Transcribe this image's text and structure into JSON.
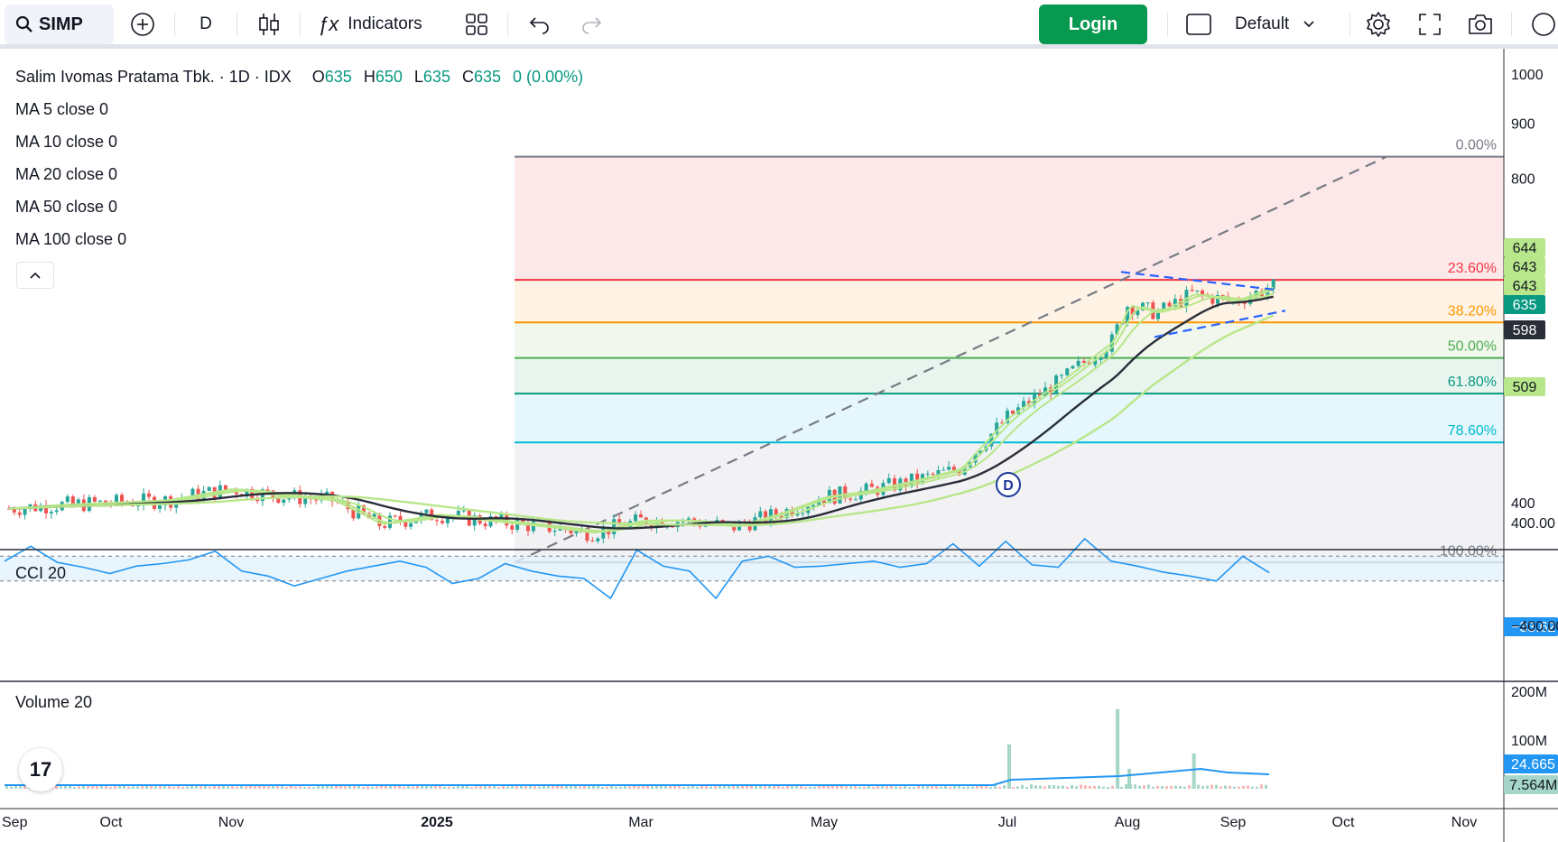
{
  "toolbar": {
    "symbol": "SIMP",
    "interval": "D",
    "indicators_label": "Indicators",
    "login_label": "Login",
    "layout_label": "Default"
  },
  "legend": {
    "name": "Salim Ivomas Pratama Tbk. · 1D · IDX",
    "o_label": "O",
    "o": "635",
    "h_label": "H",
    "h": "650",
    "l_label": "L",
    "l": "635",
    "c_label": "C",
    "c": "635",
    "change": "0 (0.00%)",
    "ma": [
      "MA 5 close 0",
      "MA 10 close 0",
      "MA 20 close 0",
      "MA 50 close 0",
      "MA 100 close 0"
    ]
  },
  "colors": {
    "up": "#26a69a",
    "down": "#ef5350",
    "ma_light": "#b8e68a",
    "ma_dark": "#2a2e39",
    "cci": "#2196f3",
    "fib_0": "#787b86",
    "fib_236": "#f23645",
    "fib_382": "#ff9800",
    "fib_50": "#4caf50",
    "fib_618": "#089981",
    "fib_786": "#00bcd4",
    "fib_100": "#787b86"
  },
  "chart_data": [
    {
      "type": "candlestick",
      "panel": "price",
      "x_labels": [
        "Sep",
        "Oct",
        "Nov",
        "2025",
        "Mar",
        "May",
        "Jul",
        "Aug",
        "Sep",
        "Oct",
        "Nov"
      ],
      "y_ticks": [
        1000,
        900,
        800,
        400
      ],
      "ylim": [
        340,
        1015
      ],
      "price_badges": [
        "644",
        "643",
        "643",
        "635",
        "598",
        "509"
      ],
      "last_close": 635,
      "fibonacci": [
        {
          "level": "0.00%",
          "price": 838
        },
        {
          "level": "23.60%",
          "price": 644
        },
        {
          "level": "38.20%",
          "price": 588
        },
        {
          "level": "50.00%",
          "price": 545
        },
        {
          "level": "61.80%",
          "price": 505
        },
        {
          "level": "78.60%",
          "price": 455
        },
        {
          "level": "100.00%",
          "price": 352
        }
      ],
      "marker": "D",
      "close_path": [
        [
          "2024-09-01",
          395
        ],
        [
          "2024-09-15",
          398
        ],
        [
          "2024-10-01",
          400
        ],
        [
          "2024-10-15",
          402
        ],
        [
          "2024-11-01",
          412
        ],
        [
          "2024-11-15",
          406
        ],
        [
          "2024-12-01",
          402
        ],
        [
          "2024-12-15",
          382
        ],
        [
          "2025-01-01",
          390
        ],
        [
          "2025-01-15",
          385
        ],
        [
          "2025-02-01",
          380
        ],
        [
          "2025-02-15",
          375
        ],
        [
          "2025-03-01",
          385
        ],
        [
          "2025-03-15",
          385
        ],
        [
          "2025-04-01",
          380
        ],
        [
          "2025-04-15",
          390
        ],
        [
          "2025-05-01",
          405
        ],
        [
          "2025-05-15",
          410
        ],
        [
          "2025-06-01",
          420
        ],
        [
          "2025-06-15",
          430
        ],
        [
          "2025-07-01",
          480
        ],
        [
          "2025-07-15",
          520
        ],
        [
          "2025-07-28",
          565
        ],
        [
          "2025-08-01",
          610
        ],
        [
          "2025-08-10",
          600
        ],
        [
          "2025-08-20",
          625
        ],
        [
          "2025-09-01",
          615
        ],
        [
          "2025-09-12",
          635
        ]
      ]
    },
    {
      "type": "line",
      "panel": "cci",
      "title": "CCI 20",
      "y_ticks": [
        "400.00",
        "−33.62",
        "−400.00"
      ],
      "last_value": "−33.62",
      "bands": [
        100,
        -100
      ],
      "values": [
        60,
        180,
        50,
        10,
        -40,
        20,
        40,
        70,
        140,
        -20,
        -60,
        -140,
        -80,
        -20,
        20,
        60,
        10,
        -120,
        -80,
        40,
        -20,
        -60,
        -80,
        -240,
        150,
        20,
        -20,
        -240,
        60,
        100,
        10,
        20,
        40,
        60,
        10,
        40,
        200,
        20,
        220,
        30,
        10,
        240,
        60,
        20,
        -30,
        -60,
        -100,
        100,
        -33.62
      ]
    },
    {
      "type": "bar",
      "panel": "volume",
      "title": "Volume 20",
      "y_ticks": [
        "200M",
        "100M"
      ],
      "badges": [
        "24.665",
        "7.564M"
      ],
      "spikes": [
        {
          "date": "2025-07-01",
          "value": 100
        },
        {
          "date": "2025-07-29",
          "value": 180
        },
        {
          "date": "2025-08-01",
          "value": 45
        },
        {
          "date": "2025-08-20",
          "value": 80
        }
      ]
    }
  ]
}
